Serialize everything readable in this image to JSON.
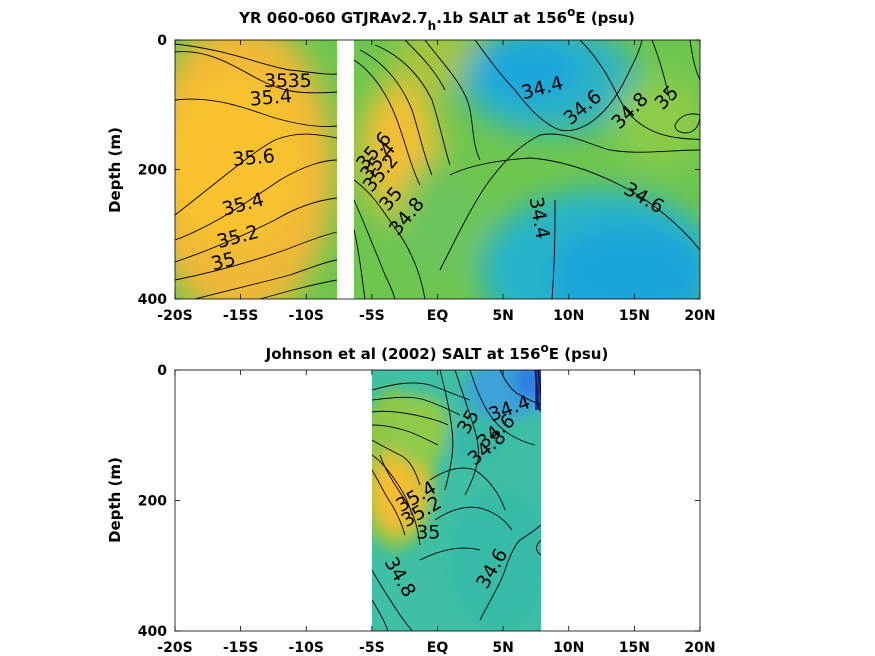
{
  "chart_data": [
    {
      "type": "heatmap",
      "title_parts": [
        "YR 060-060 GTJRAv2.7",
        "h",
        ".1b SALT at 156",
        "o",
        "E (psu)"
      ],
      "ylabel": "Depth (m)",
      "xlim": [
        -20,
        20
      ],
      "ylim": [
        0,
        400
      ],
      "y_reversed": true,
      "x_ticks": [
        -20,
        -15,
        -10,
        -5,
        0,
        5,
        10,
        15,
        20
      ],
      "x_tick_labels": [
        "-20S",
        "-15S",
        "-10S",
        "-5S",
        "EQ",
        "5N",
        "10N",
        "15N",
        "20N"
      ],
      "y_ticks": [
        0,
        200,
        400
      ],
      "y_tick_labels": [
        "0",
        "200",
        "400"
      ],
      "gap_lat": [
        -7.8,
        -6.8
      ],
      "contour_labels": [
        {
          "text": "35",
          "lat": -10.5,
          "depth": 64,
          "angle": 0
        },
        {
          "text": "35",
          "lat": -12.3,
          "depth": 64,
          "angle": 0
        },
        {
          "text": "35.4",
          "lat": -12.7,
          "depth": 90,
          "angle": -5
        },
        {
          "text": "35.6",
          "lat": -14.0,
          "depth": 183,
          "angle": -5
        },
        {
          "text": "35.4",
          "lat": -14.8,
          "depth": 255,
          "angle": -15
        },
        {
          "text": "35.2",
          "lat": -15.2,
          "depth": 305,
          "angle": -15
        },
        {
          "text": "35",
          "lat": -16.3,
          "depth": 343,
          "angle": -15
        },
        {
          "text": "35.6",
          "lat": -4.8,
          "depth": 172,
          "angle": -50
        },
        {
          "text": "35.4",
          "lat": -4.5,
          "depth": 188,
          "angle": -50
        },
        {
          "text": "35.2",
          "lat": -4.3,
          "depth": 206,
          "angle": -50
        },
        {
          "text": "35",
          "lat": -3.5,
          "depth": 246,
          "angle": -50
        },
        {
          "text": "34.8",
          "lat": -2.3,
          "depth": 273,
          "angle": -50
        },
        {
          "text": "34.4",
          "lat": 8.0,
          "depth": 75,
          "angle": -15
        },
        {
          "text": "34.6",
          "lat": 11.1,
          "depth": 105,
          "angle": -40
        },
        {
          "text": "34.8",
          "lat": 14.7,
          "depth": 110,
          "angle": -45
        },
        {
          "text": "35",
          "lat": 17.5,
          "depth": 90,
          "angle": -45
        },
        {
          "text": "34.6",
          "lat": 15.7,
          "depth": 245,
          "angle": 30
        },
        {
          "text": "34.4",
          "lat": 7.7,
          "depth": 275,
          "angle": 80
        }
      ]
    },
    {
      "type": "heatmap",
      "title_parts": [
        "Johnson et al (2002) SALT at 156",
        "o",
        "E (psu)"
      ],
      "ylabel": "Depth (m)",
      "xlim": [
        -20,
        20
      ],
      "ylim": [
        0,
        400
      ],
      "y_reversed": true,
      "x_ticks": [
        -20,
        -15,
        -10,
        -5,
        0,
        5,
        10,
        15,
        20
      ],
      "x_tick_labels": [
        "-20S",
        "-15S",
        "-10S",
        "-5S",
        "EQ",
        "5N",
        "10N",
        "15N",
        "20N"
      ],
      "y_ticks": [
        0,
        200,
        400
      ],
      "y_tick_labels": [
        "0",
        "200",
        "400"
      ],
      "data_lat_range": [
        -5,
        8
      ],
      "contour_labels": [
        {
          "text": "34.4",
          "lat": 5.5,
          "depth": 60,
          "angle": -20
        },
        {
          "text": "34.6",
          "lat": 4.5,
          "depth": 95,
          "angle": -40
        },
        {
          "text": "34.8",
          "lat": 3.8,
          "depth": 120,
          "angle": -40
        },
        {
          "text": "35",
          "lat": 2.4,
          "depth": 80,
          "angle": -60
        },
        {
          "text": "35.4",
          "lat": -1.6,
          "depth": 195,
          "angle": -30
        },
        {
          "text": "35.2",
          "lat": -1.2,
          "depth": 218,
          "angle": -30
        },
        {
          "text": "35",
          "lat": -0.7,
          "depth": 250,
          "angle": 0
        },
        {
          "text": "34.6",
          "lat": 4.2,
          "depth": 305,
          "angle": -60
        },
        {
          "text": "34.8",
          "lat": -2.9,
          "depth": 318,
          "angle": 60
        }
      ]
    }
  ]
}
